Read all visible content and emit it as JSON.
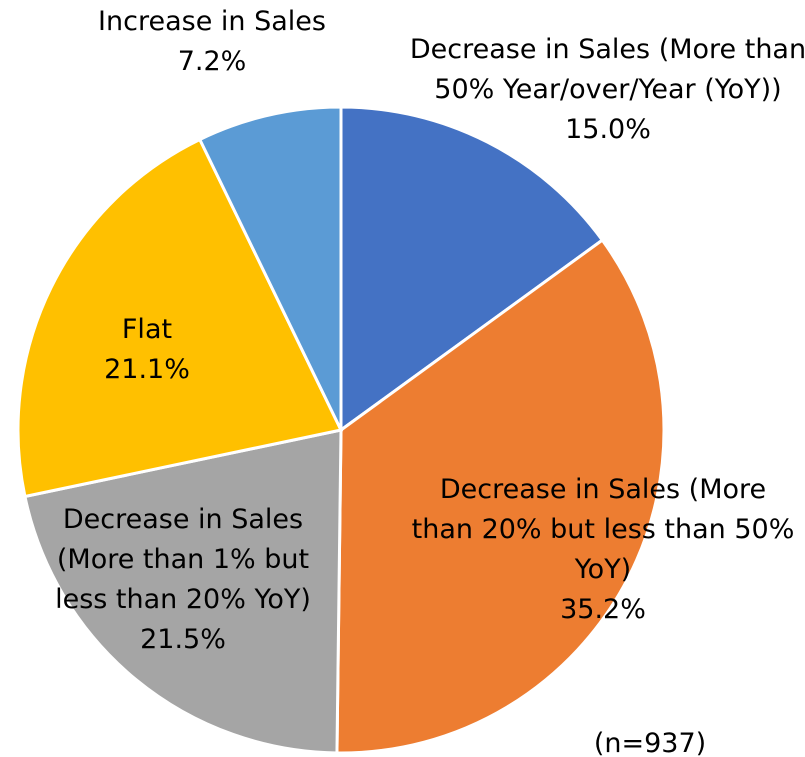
{
  "chart_data": {
    "type": "pie",
    "categories": [
      "Decrease in Sales (More than 50% Year/over/Year (YoY))",
      "Decrease in Sales (More than 20% but less than 50% YoY)",
      "Decrease in Sales (More than 1% but less than 20% YoY)",
      "Flat",
      "Increase in Sales"
    ],
    "values": [
      15.0,
      35.2,
      21.5,
      21.1,
      7.2
    ],
    "value_labels": [
      "15.0%",
      "35.2%",
      "21.5%",
      "21.1%",
      "7.2%"
    ],
    "colors": [
      "#4472c4",
      "#ed7d31",
      "#a5a5a5",
      "#ffc000",
      "#5b9bd5"
    ],
    "annotation": "(n=937)"
  }
}
